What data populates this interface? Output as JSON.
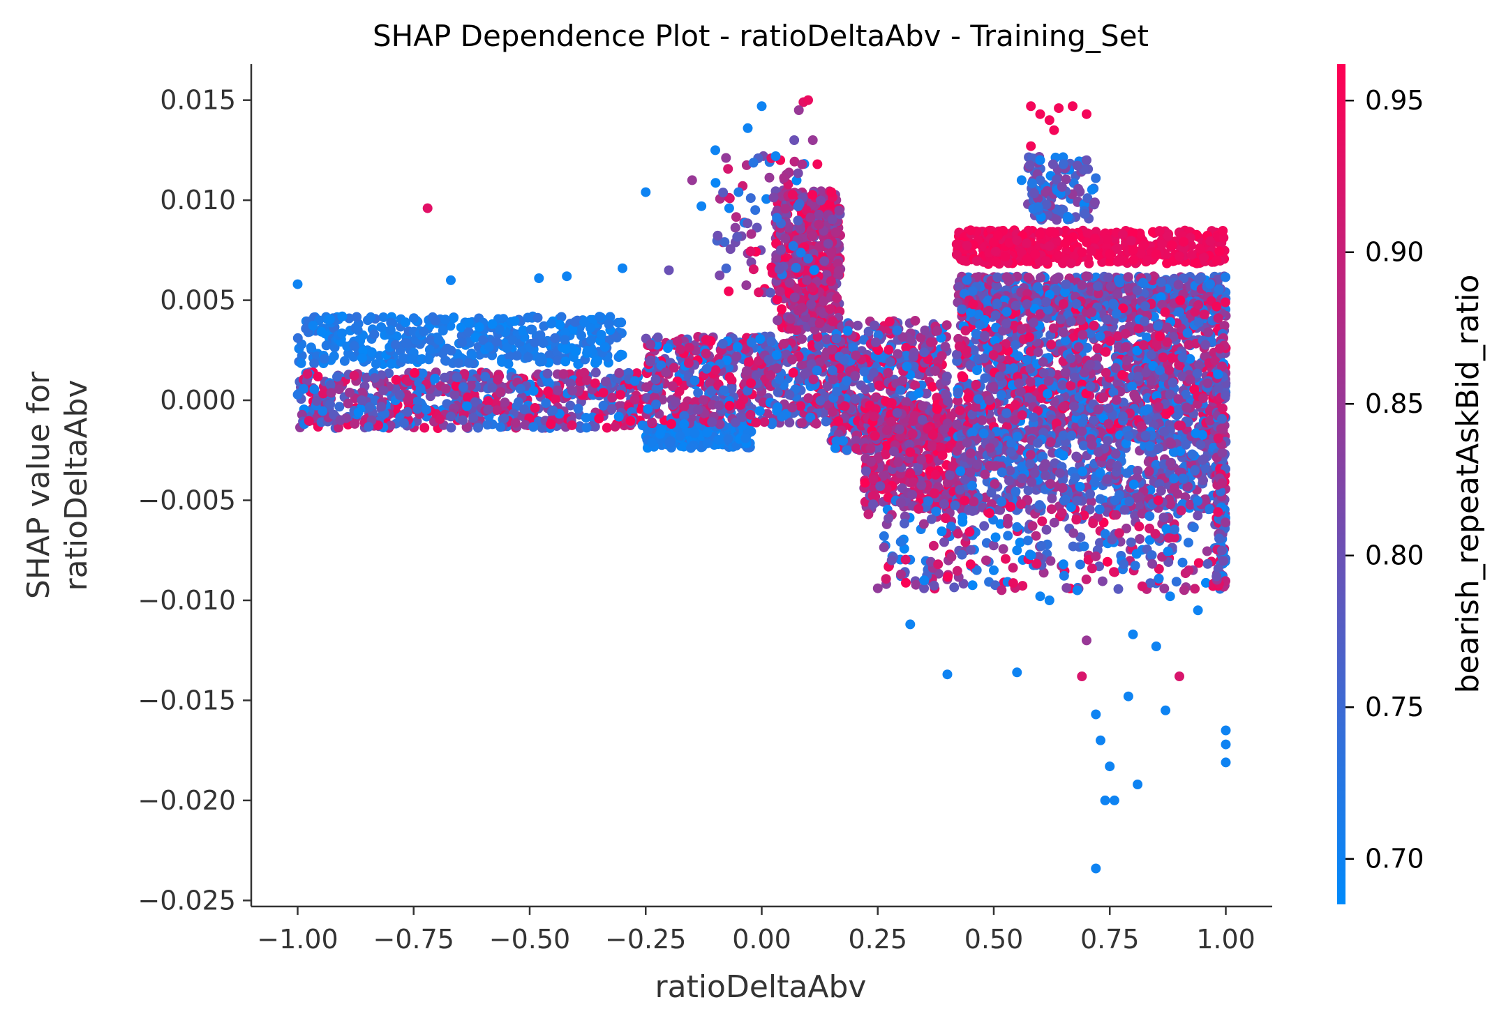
{
  "chart_data": {
    "type": "scatter",
    "title": "SHAP Dependence Plot - ratioDeltaAbv - Training_Set",
    "xlabel": "ratioDeltaAbv",
    "ylabel_lines": [
      "SHAP value for",
      "ratioDeltaAbv"
    ],
    "xlim": [
      -1.1,
      1.1
    ],
    "ylim": [
      -0.0253,
      0.0168
    ],
    "x_ticks": [
      -1.0,
      -0.75,
      -0.5,
      -0.25,
      0.0,
      0.25,
      0.5,
      0.75,
      1.0
    ],
    "x_tick_labels": [
      "−1.00",
      "−0.75",
      "−0.50",
      "−0.25",
      "0.00",
      "0.25",
      "0.50",
      "0.75",
      "1.00"
    ],
    "y_ticks": [
      0.015,
      0.01,
      0.005,
      0.0,
      -0.005,
      -0.01,
      -0.015,
      -0.02,
      -0.025
    ],
    "y_tick_labels": [
      "0.015",
      "0.010",
      "0.005",
      "0.000",
      "−0.005",
      "−0.010",
      "−0.015",
      "−0.020",
      "−0.025"
    ],
    "grid": false,
    "color_feature": "bearish_repeatAskBid_ratio",
    "colorbar": {
      "label": "bearish_repeatAskBid_ratio",
      "range": [
        0.685,
        0.962
      ],
      "ticks": [
        0.95,
        0.9,
        0.85,
        0.8,
        0.75,
        0.7
      ],
      "tick_labels": [
        "0.95",
        "0.90",
        "0.85",
        "0.80",
        "0.75",
        "0.70"
      ],
      "colors": [
        "#008afb",
        "#ff0052"
      ]
    },
    "color_scale": [
      "#008afb",
      "#ff0052"
    ],
    "series": [
      {
        "points": [
          [
            -1.0,
            0.0058,
            0.7
          ],
          [
            -0.72,
            0.0096,
            0.93
          ],
          [
            -0.48,
            0.0061,
            0.7
          ],
          [
            -0.42,
            0.0062,
            0.7
          ],
          [
            -0.67,
            0.006,
            0.7
          ],
          [
            -0.25,
            0.0104,
            0.7
          ],
          [
            -0.1,
            0.0125,
            0.7
          ],
          [
            -0.03,
            0.0136,
            0.7
          ],
          [
            0.0,
            0.0147,
            0.7
          ],
          [
            0.09,
            0.0149,
            0.93
          ],
          [
            0.1,
            0.015,
            0.94
          ],
          [
            0.08,
            0.0145,
            0.85
          ],
          [
            0.07,
            0.013,
            0.8
          ],
          [
            0.12,
            0.0118,
            0.95
          ],
          [
            -0.13,
            0.0097,
            0.7
          ],
          [
            -0.07,
            0.0096,
            0.7
          ],
          [
            -0.15,
            0.011,
            0.85
          ],
          [
            -0.2,
            0.0065,
            0.8
          ],
          [
            -0.3,
            0.0066,
            0.7
          ],
          [
            -0.05,
            0.0104,
            0.72
          ],
          [
            0.15,
            0.0104,
            0.95
          ],
          [
            0.04,
            0.012,
            0.95
          ],
          [
            0.03,
            0.0122,
            0.7
          ],
          [
            0.11,
            0.013,
            0.85
          ],
          [
            0.58,
            0.0147,
            0.95
          ],
          [
            0.6,
            0.0143,
            0.95
          ],
          [
            0.62,
            0.014,
            0.95
          ],
          [
            0.64,
            0.0146,
            0.95
          ],
          [
            0.67,
            0.0147,
            0.95
          ],
          [
            0.7,
            0.0143,
            0.95
          ],
          [
            0.63,
            0.0135,
            0.95
          ],
          [
            0.58,
            0.0127,
            0.95
          ],
          [
            0.6,
            0.012,
            0.7
          ],
          [
            0.65,
            0.0118,
            0.75
          ],
          [
            0.7,
            0.012,
            0.8
          ],
          [
            0.56,
            0.011,
            0.7
          ],
          [
            0.45,
            0.0085,
            0.95
          ],
          [
            0.55,
            0.008,
            0.93
          ],
          [
            0.7,
            0.0079,
            0.95
          ],
          [
            0.85,
            0.0073,
            0.95
          ],
          [
            0.98,
            0.007,
            0.95
          ],
          [
            0.42,
            0.0078,
            0.94
          ],
          [
            0.6,
            0.0083,
            0.95
          ],
          [
            0.9,
            0.0072,
            0.94
          ],
          [
            0.75,
            0.0073,
            0.95
          ],
          [
            0.5,
            0.0079,
            0.95
          ],
          [
            0.62,
            0.0077,
            0.93
          ],
          [
            0.8,
            0.0075,
            0.95
          ],
          [
            0.72,
            -0.0234,
            0.7
          ],
          [
            0.74,
            -0.02,
            0.7
          ],
          [
            0.76,
            -0.02,
            0.7
          ],
          [
            0.81,
            -0.0192,
            0.7
          ],
          [
            0.75,
            -0.0183,
            0.7
          ],
          [
            0.73,
            -0.017,
            0.7
          ],
          [
            1.0,
            -0.0181,
            0.7
          ],
          [
            0.72,
            -0.0157,
            0.7
          ],
          [
            0.79,
            -0.0148,
            0.7
          ],
          [
            0.87,
            -0.0155,
            0.7
          ],
          [
            0.69,
            -0.0138,
            0.92
          ],
          [
            0.55,
            -0.0136,
            0.7
          ],
          [
            0.4,
            -0.0137,
            0.7
          ],
          [
            0.7,
            -0.012,
            0.85
          ],
          [
            0.8,
            -0.0117,
            0.7
          ],
          [
            0.9,
            -0.0138,
            0.92
          ],
          [
            0.94,
            -0.0105,
            0.7
          ],
          [
            1.0,
            -0.0172,
            0.7
          ],
          [
            1.0,
            -0.0165,
            0.7
          ],
          [
            0.85,
            -0.0123,
            0.7
          ],
          [
            0.6,
            -0.0098,
            0.7
          ],
          [
            0.32,
            -0.0112,
            0.7
          ],
          [
            0.28,
            -0.008,
            0.8
          ],
          [
            0.3,
            -0.0087,
            0.87
          ],
          [
            0.23,
            -0.0057,
            0.9
          ],
          [
            0.24,
            -0.0052,
            0.8
          ],
          [
            0.35,
            -0.009,
            0.7
          ],
          [
            0.38,
            -0.0082,
            0.92
          ],
          [
            0.5,
            -0.0085,
            0.7
          ],
          [
            0.65,
            -0.0082,
            0.7
          ],
          [
            0.78,
            -0.0082,
            0.75
          ],
          [
            0.92,
            -0.0085,
            0.9
          ],
          [
            0.98,
            -0.0088,
            0.8
          ],
          [
            0.45,
            -0.0082,
            0.95
          ],
          [
            0.55,
            -0.0075,
            0.7
          ],
          [
            0.72,
            -0.0078,
            0.88
          ],
          [
            0.82,
            -0.0093,
            0.92
          ],
          [
            0.62,
            -0.01,
            0.7
          ],
          [
            0.68,
            -0.0095,
            0.7
          ],
          [
            0.88,
            -0.0098,
            0.7
          ]
        ],
        "bands": [
          {
            "x_range": [
              -1.0,
              -0.3
            ],
            "y_range": [
              0.0018,
              0.0042
            ],
            "density": 420,
            "color_range": [
              0.69,
              0.74
            ]
          },
          {
            "x_range": [
              -1.0,
              -0.25
            ],
            "y_range": [
              -0.0014,
              0.0014
            ],
            "density": 650,
            "color_range": [
              0.69,
              0.96
            ]
          },
          {
            "x_range": [
              -0.25,
              -0.02
            ],
            "y_range": [
              -0.0024,
              -0.0012
            ],
            "density": 220,
            "color_range": [
              0.69,
              0.73
            ]
          },
          {
            "x_range": [
              -0.25,
              0.2
            ],
            "y_range": [
              -0.0012,
              0.0032
            ],
            "density": 650,
            "color_range": [
              0.69,
              0.96
            ]
          },
          {
            "x_range": [
              0.03,
              0.17
            ],
            "y_range": [
              0.0035,
              0.0105
            ],
            "density": 520,
            "color_range": [
              0.8,
              0.96
            ]
          },
          {
            "x_range": [
              -0.1,
              0.12
            ],
            "y_range": [
              0.005,
              0.0123
            ],
            "density": 90,
            "color_range": [
              0.69,
              0.96
            ]
          },
          {
            "x_range": [
              0.15,
              0.4
            ],
            "y_range": [
              -0.0025,
              0.004
            ],
            "density": 500,
            "color_range": [
              0.69,
              0.96
            ]
          },
          {
            "x_range": [
              0.22,
              0.42
            ],
            "y_range": [
              -0.0055,
              0.0
            ],
            "density": 420,
            "color_range": [
              0.8,
              0.96
            ]
          },
          {
            "x_range": [
              0.42,
              1.0
            ],
            "y_range": [
              0.0045,
              0.0062
            ],
            "density": 560,
            "color_range": [
              0.69,
              0.9
            ]
          },
          {
            "x_range": [
              0.42,
              1.0
            ],
            "y_range": [
              0.0068,
              0.0085
            ],
            "density": 480,
            "color_range": [
              0.93,
              0.96
            ]
          },
          {
            "x_range": [
              0.42,
              1.0
            ],
            "y_range": [
              -0.002,
              0.005
            ],
            "density": 1500,
            "color_range": [
              0.69,
              0.96
            ]
          },
          {
            "x_range": [
              0.42,
              1.0
            ],
            "y_range": [
              -0.0055,
              -0.0015
            ],
            "density": 650,
            "color_range": [
              0.69,
              0.88
            ]
          },
          {
            "x_range": [
              0.25,
              1.0
            ],
            "y_range": [
              -0.0095,
              -0.005
            ],
            "density": 320,
            "color_range": [
              0.69,
              0.96
            ]
          },
          {
            "x_range": [
              0.57,
              0.72
            ],
            "y_range": [
              0.009,
              0.0122
            ],
            "density": 110,
            "color_range": [
              0.69,
              0.85
            ]
          },
          {
            "x_range": [
              0.98,
              1.0
            ],
            "y_range": [
              -0.0095,
              0.0035
            ],
            "density": 160,
            "color_range": [
              0.69,
              0.96
            ]
          }
        ]
      }
    ]
  }
}
